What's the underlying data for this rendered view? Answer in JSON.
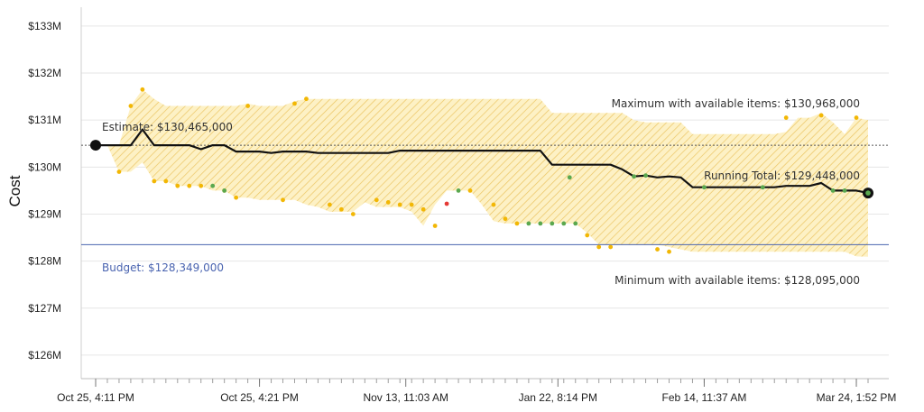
{
  "chart_data": {
    "type": "line",
    "ylabel": "Cost",
    "ylim": [
      125.5,
      133.4
    ],
    "y_ticks": [
      "$126M",
      "$127M",
      "$128M",
      "$129M",
      "$130M",
      "$131M",
      "$132M",
      "$133M"
    ],
    "y_tick_values": [
      126,
      127,
      128,
      129,
      130,
      131,
      132,
      133
    ],
    "x_ticks": [
      {
        "label": "Oct 25, 4:11 PM",
        "x": 0
      },
      {
        "label": "Oct 25, 4:21 PM",
        "x": 14
      },
      {
        "label": "Nov 13, 11:03 AM",
        "x": 26.5
      },
      {
        "label": "Jan 22, 8:14 PM",
        "x": 39.5
      },
      {
        "label": "Feb 14, 11:37 AM",
        "x": 52
      },
      {
        "label": "Mar 24, 1:52 PM",
        "x": 65
      }
    ],
    "x_range": [
      -1,
      66.5
    ],
    "grid": true,
    "colors": {
      "running_total": "#111111",
      "band_fill": "#fbe7a6",
      "band_hatch": "#e8bf4a",
      "estimate_line": "#555555",
      "budget_line": "#4a64b0",
      "dot_high": "#f2b705",
      "dot_low": "#5aa84f",
      "dot_alert": "#e53935"
    },
    "series": [
      {
        "name": "Running Total",
        "points": [
          [
            0,
            130.465
          ],
          [
            1,
            130.465
          ],
          [
            2,
            130.465
          ],
          [
            3,
            130.465
          ],
          [
            4,
            130.8
          ],
          [
            5,
            130.465
          ],
          [
            6,
            130.465
          ],
          [
            7,
            130.465
          ],
          [
            8,
            130.465
          ],
          [
            9,
            130.38
          ],
          [
            10,
            130.465
          ],
          [
            11,
            130.465
          ],
          [
            12,
            130.33
          ],
          [
            13,
            130.33
          ],
          [
            14,
            130.33
          ],
          [
            15,
            130.3
          ],
          [
            16,
            130.33
          ],
          [
            17,
            130.33
          ],
          [
            18,
            130.33
          ],
          [
            19,
            130.3
          ],
          [
            20,
            130.3
          ],
          [
            21,
            130.3
          ],
          [
            22,
            130.3
          ],
          [
            23,
            130.3
          ],
          [
            24,
            130.3
          ],
          [
            25,
            130.3
          ],
          [
            26,
            130.35
          ],
          [
            27,
            130.35
          ],
          [
            28,
            130.35
          ],
          [
            29,
            130.35
          ],
          [
            30,
            130.35
          ],
          [
            31,
            130.35
          ],
          [
            32,
            130.35
          ],
          [
            33,
            130.35
          ],
          [
            34,
            130.35
          ],
          [
            35,
            130.35
          ],
          [
            36,
            130.35
          ],
          [
            37,
            130.35
          ],
          [
            38,
            130.35
          ],
          [
            39,
            130.05
          ],
          [
            40,
            130.05
          ],
          [
            41,
            130.05
          ],
          [
            42,
            130.05
          ],
          [
            43,
            130.05
          ],
          [
            44,
            130.05
          ],
          [
            45,
            129.95
          ],
          [
            46,
            129.8
          ],
          [
            47,
            129.82
          ],
          [
            48,
            129.78
          ],
          [
            49,
            129.8
          ],
          [
            50,
            129.78
          ],
          [
            51,
            129.57
          ],
          [
            52,
            129.57
          ],
          [
            53,
            129.57
          ],
          [
            54,
            129.57
          ],
          [
            55,
            129.57
          ],
          [
            56,
            129.57
          ],
          [
            57,
            129.57
          ],
          [
            58,
            129.57
          ],
          [
            59,
            129.6
          ],
          [
            60,
            129.6
          ],
          [
            61,
            129.6
          ],
          [
            62,
            129.66
          ],
          [
            63,
            129.5
          ],
          [
            64,
            129.5
          ],
          [
            65,
            129.5
          ],
          [
            66,
            129.448
          ]
        ]
      }
    ],
    "band_upper": [
      [
        0,
        130.465
      ],
      [
        1,
        130.465
      ],
      [
        2,
        130.465
      ],
      [
        3,
        131.3
      ],
      [
        4,
        131.65
      ],
      [
        5,
        131.45
      ],
      [
        6,
        131.3
      ],
      [
        7,
        131.3
      ],
      [
        8,
        131.3
      ],
      [
        9,
        131.3
      ],
      [
        10,
        131.3
      ],
      [
        11,
        131.3
      ],
      [
        12,
        131.3
      ],
      [
        13,
        131.35
      ],
      [
        14,
        131.3
      ],
      [
        15,
        131.3
      ],
      [
        16,
        131.3
      ],
      [
        17,
        131.4
      ],
      [
        18,
        131.45
      ],
      [
        19,
        131.45
      ],
      [
        20,
        131.45
      ],
      [
        21,
        131.45
      ],
      [
        22,
        131.45
      ],
      [
        23,
        131.45
      ],
      [
        24,
        131.45
      ],
      [
        25,
        131.45
      ],
      [
        26,
        131.45
      ],
      [
        27,
        131.45
      ],
      [
        28,
        131.45
      ],
      [
        29,
        131.45
      ],
      [
        30,
        131.45
      ],
      [
        31,
        131.45
      ],
      [
        32,
        131.45
      ],
      [
        33,
        131.45
      ],
      [
        34,
        131.45
      ],
      [
        35,
        131.45
      ],
      [
        36,
        131.45
      ],
      [
        37,
        131.45
      ],
      [
        38,
        131.45
      ],
      [
        39,
        131.15
      ],
      [
        40,
        131.15
      ],
      [
        41,
        131.15
      ],
      [
        42,
        131.15
      ],
      [
        43,
        131.15
      ],
      [
        44,
        131.15
      ],
      [
        45,
        131.15
      ],
      [
        46,
        131.0
      ],
      [
        47,
        130.95
      ],
      [
        48,
        130.95
      ],
      [
        49,
        130.95
      ],
      [
        50,
        130.95
      ],
      [
        51,
        130.7
      ],
      [
        52,
        130.7
      ],
      [
        53,
        130.7
      ],
      [
        54,
        130.7
      ],
      [
        55,
        130.7
      ],
      [
        56,
        130.7
      ],
      [
        57,
        130.7
      ],
      [
        58,
        130.7
      ],
      [
        59,
        130.75
      ],
      [
        60,
        131.05
      ],
      [
        61,
        131.05
      ],
      [
        62,
        131.15
      ],
      [
        63,
        130.95
      ],
      [
        64,
        130.7
      ],
      [
        65,
        131.05
      ],
      [
        66,
        131.0
      ]
    ],
    "band_lower": [
      [
        0,
        130.465
      ],
      [
        1,
        130.465
      ],
      [
        2,
        129.9
      ],
      [
        3,
        129.9
      ],
      [
        4,
        130.1
      ],
      [
        5,
        129.7
      ],
      [
        6,
        129.7
      ],
      [
        7,
        129.6
      ],
      [
        8,
        129.6
      ],
      [
        9,
        129.6
      ],
      [
        10,
        129.5
      ],
      [
        11,
        129.5
      ],
      [
        12,
        129.35
      ],
      [
        13,
        129.35
      ],
      [
        14,
        129.3
      ],
      [
        15,
        129.3
      ],
      [
        16,
        129.3
      ],
      [
        17,
        129.3
      ],
      [
        18,
        129.2
      ],
      [
        19,
        129.15
      ],
      [
        20,
        129.05
      ],
      [
        21,
        129.05
      ],
      [
        22,
        129.05
      ],
      [
        23,
        129.25
      ],
      [
        24,
        129.15
      ],
      [
        25,
        129.15
      ],
      [
        26,
        129.15
      ],
      [
        27,
        129.05
      ],
      [
        28,
        128.75
      ],
      [
        29,
        129.2
      ],
      [
        30,
        129.5
      ],
      [
        31,
        129.5
      ],
      [
        32,
        129.5
      ],
      [
        33,
        129.2
      ],
      [
        34,
        128.85
      ],
      [
        35,
        128.8
      ],
      [
        36,
        128.8
      ],
      [
        37,
        128.8
      ],
      [
        38,
        128.8
      ],
      [
        39,
        128.8
      ],
      [
        40,
        128.8
      ],
      [
        41,
        128.8
      ],
      [
        42,
        128.6
      ],
      [
        43,
        128.35
      ],
      [
        44,
        128.35
      ],
      [
        45,
        128.35
      ],
      [
        46,
        128.35
      ],
      [
        47,
        128.35
      ],
      [
        48,
        128.35
      ],
      [
        49,
        128.3
      ],
      [
        50,
        128.25
      ],
      [
        51,
        128.2
      ],
      [
        52,
        128.2
      ],
      [
        53,
        128.2
      ],
      [
        54,
        128.2
      ],
      [
        55,
        128.2
      ],
      [
        56,
        128.2
      ],
      [
        57,
        128.2
      ],
      [
        58,
        128.2
      ],
      [
        59,
        128.2
      ],
      [
        60,
        128.2
      ],
      [
        61,
        128.2
      ],
      [
        62,
        128.2
      ],
      [
        63,
        128.2
      ],
      [
        64,
        128.2
      ],
      [
        65,
        128.1
      ],
      [
        66,
        128.095
      ]
    ],
    "dots_high": [
      [
        3,
        131.3
      ],
      [
        4,
        131.65
      ],
      [
        13,
        131.3
      ],
      [
        17,
        131.35
      ],
      [
        18,
        131.45
      ],
      [
        59,
        131.05
      ],
      [
        62,
        131.1
      ],
      [
        65,
        131.05
      ]
    ],
    "dots_low": [
      [
        2,
        129.9
      ],
      [
        5,
        129.7
      ],
      [
        6,
        129.7
      ],
      [
        7,
        129.6
      ],
      [
        8,
        129.6
      ],
      [
        9,
        129.6
      ],
      [
        11,
        129.5
      ],
      [
        12,
        129.35
      ],
      [
        16,
        129.3
      ],
      [
        20,
        129.2
      ],
      [
        21,
        129.1
      ],
      [
        22,
        129.0
      ],
      [
        24,
        129.3
      ],
      [
        25,
        129.25
      ],
      [
        26,
        129.2
      ],
      [
        27,
        129.2
      ],
      [
        28,
        129.1
      ],
      [
        29,
        128.75
      ],
      [
        32,
        129.5
      ],
      [
        34,
        129.2
      ],
      [
        35,
        128.9
      ],
      [
        36,
        128.8
      ],
      [
        42,
        128.55
      ],
      [
        43,
        128.3
      ],
      [
        44,
        128.3
      ],
      [
        48,
        128.25
      ],
      [
        49,
        128.2
      ]
    ],
    "dots_green": [
      [
        10,
        129.6
      ],
      [
        11,
        129.5
      ],
      [
        31,
        129.5
      ],
      [
        37,
        128.8
      ],
      [
        38,
        128.8
      ],
      [
        39,
        128.8
      ],
      [
        40,
        128.8
      ],
      [
        41,
        128.8
      ],
      [
        40.5,
        129.78
      ],
      [
        46,
        129.8
      ],
      [
        47,
        129.82
      ],
      [
        52,
        129.57
      ],
      [
        57,
        129.57
      ],
      [
        63,
        129.5
      ],
      [
        64,
        129.5
      ]
    ],
    "dots_alert": [
      [
        30,
        129.22
      ]
    ],
    "reference_lines": [
      {
        "name": "Estimate",
        "value": 130.465
      },
      {
        "name": "Budget",
        "value": 128.349
      }
    ],
    "annotations": {
      "estimate": "Estimate: $130,465,000",
      "maximum": "Maximum with available items: $130,968,000",
      "running_total": "Running Total: $129,448,000",
      "budget": "Budget: $128,349,000",
      "minimum": "Minimum with available items: $128,095,000"
    }
  }
}
